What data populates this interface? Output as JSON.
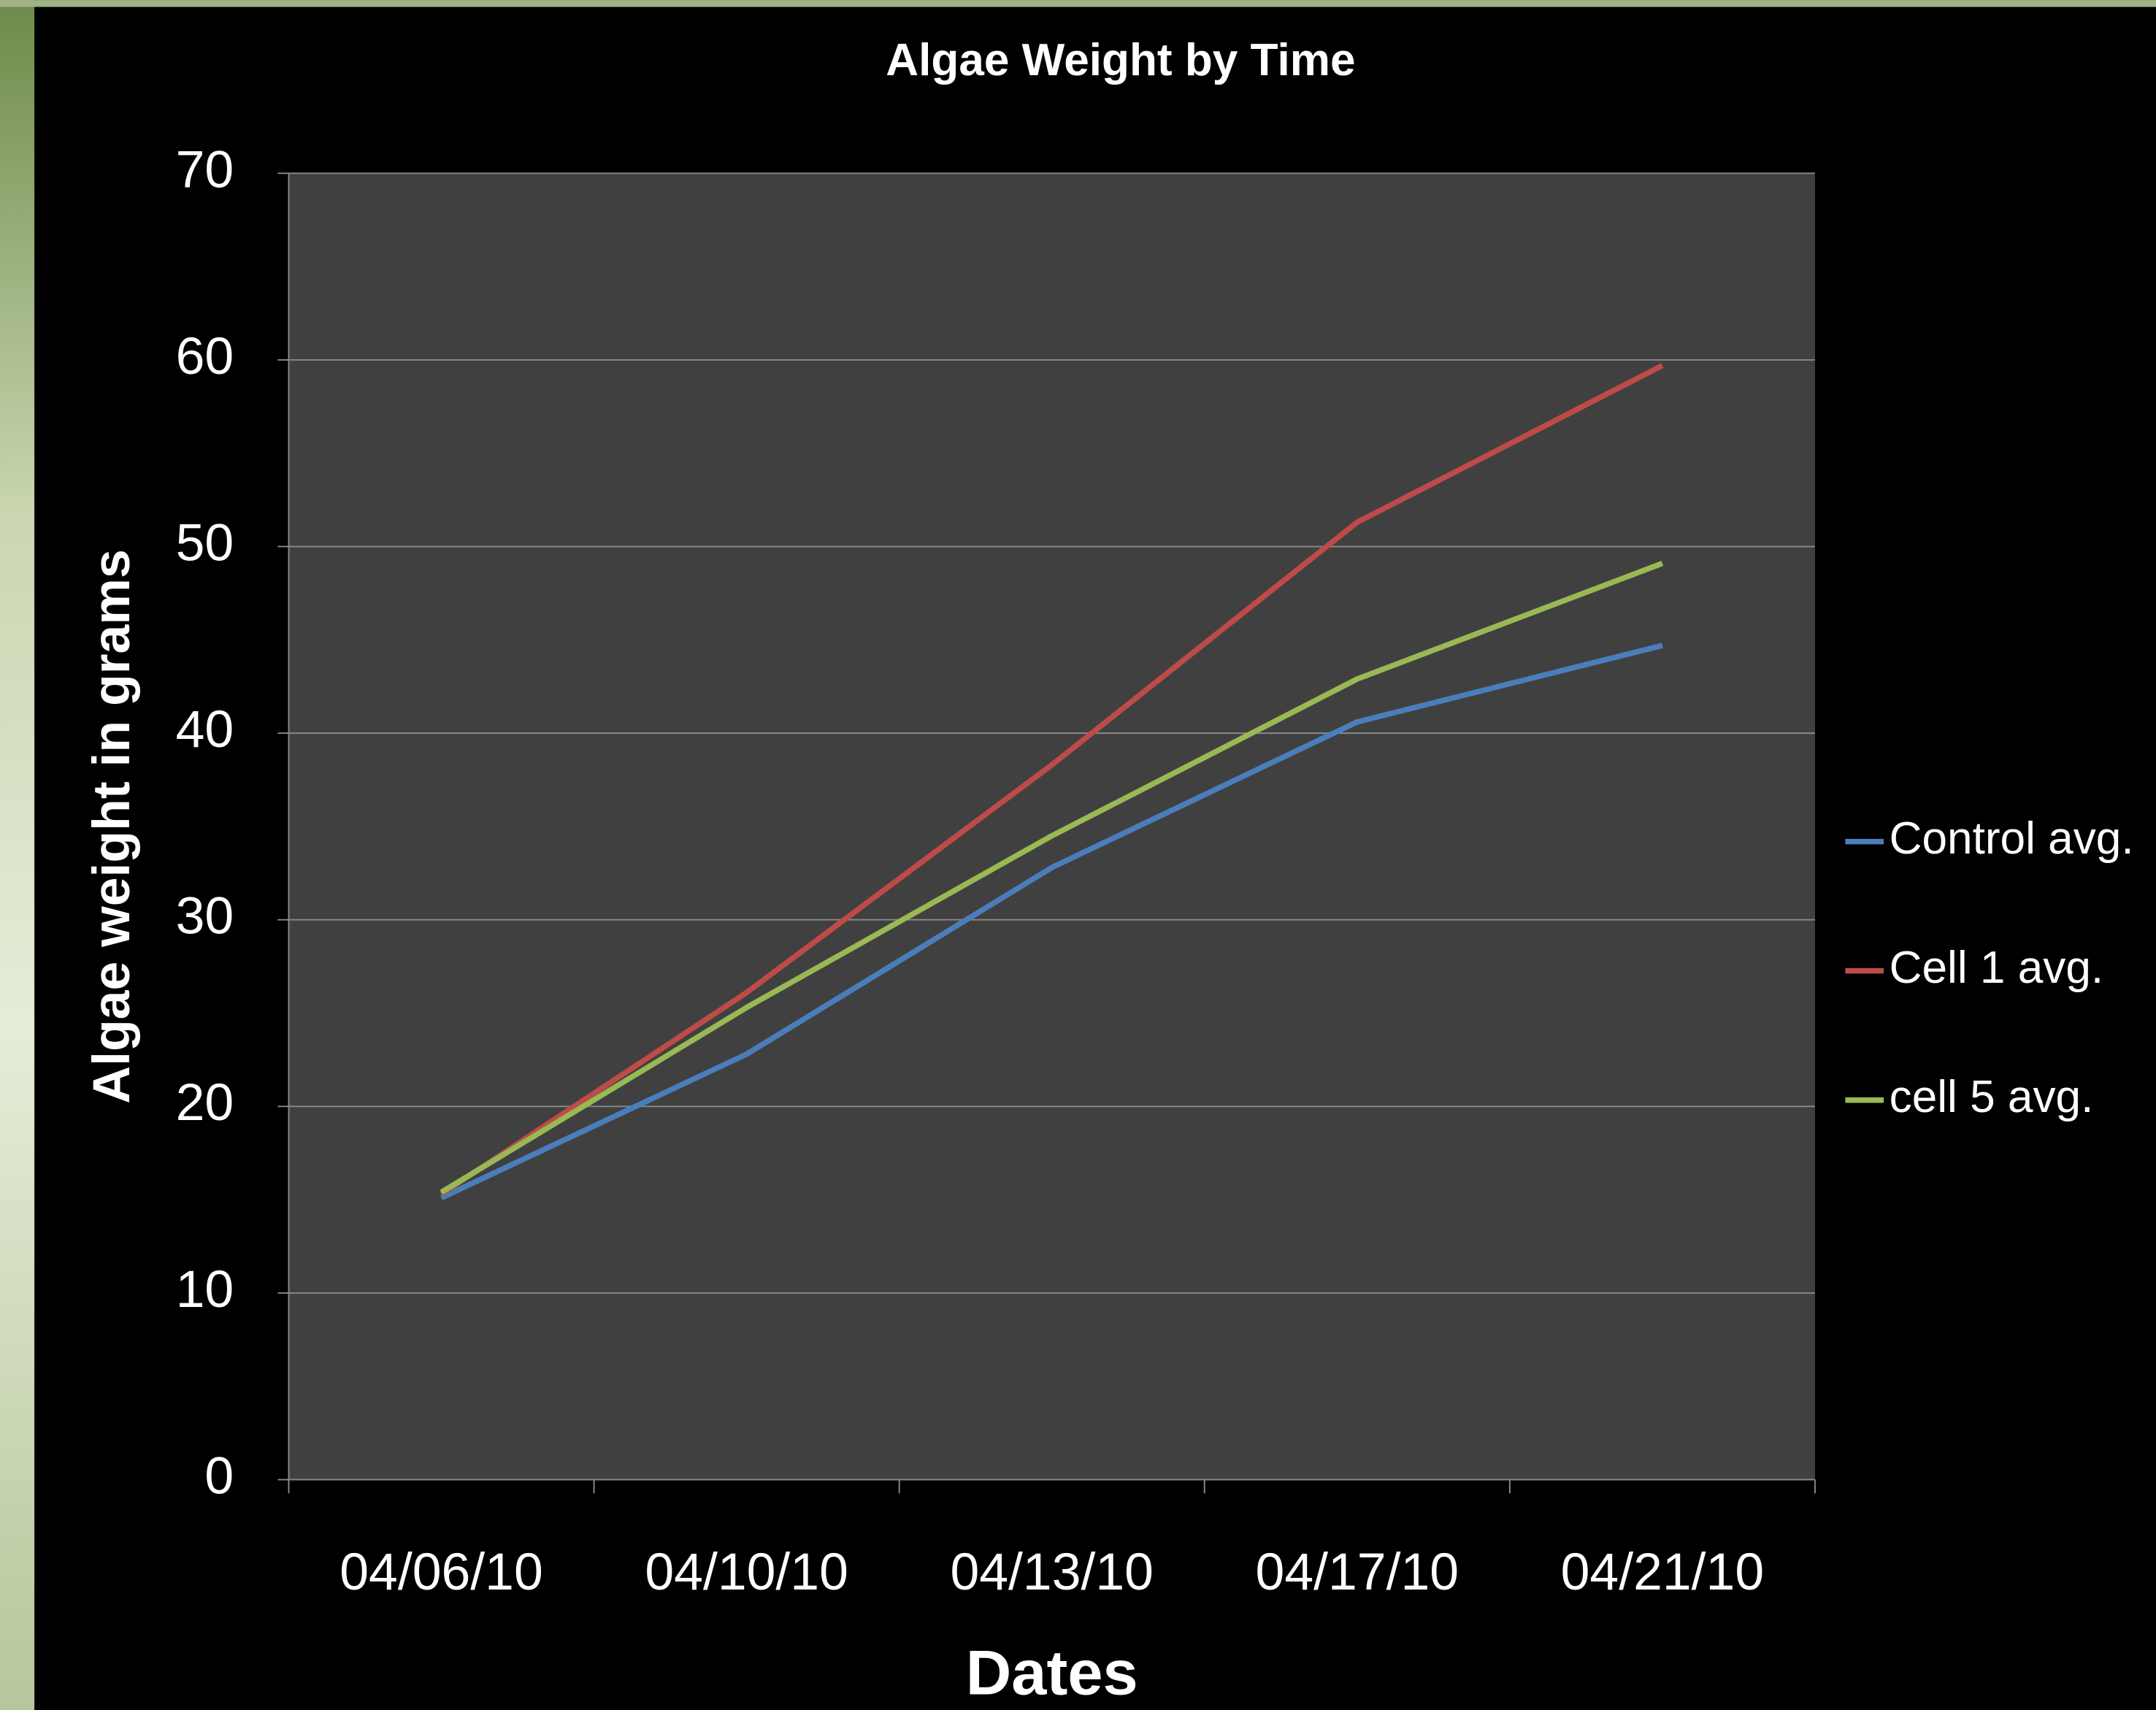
{
  "chart_data": {
    "type": "line",
    "title": "Algae Weight by Time",
    "x_label": "Dates",
    "y_label": "Algae weight in grams",
    "categories": [
      "04/06/10",
      "04/10/10",
      "04/13/10",
      "04/17/10",
      "04/21/10"
    ],
    "series": [
      {
        "name": "Control avg.",
        "color": "#4a7ebb",
        "values": [
          15.1,
          22.8,
          32.8,
          40.6,
          44.7
        ]
      },
      {
        "name": "Cell 1 avg.",
        "color": "#be4b48",
        "values": [
          15.3,
          26.1,
          38.3,
          51.3,
          59.7
        ]
      },
      {
        "name": "cell 5 avg.",
        "color": "#98b954",
        "values": [
          15.4,
          25.3,
          34.5,
          42.9,
          49.1
        ]
      }
    ],
    "ylim": [
      0,
      70
    ],
    "yticks": [
      0,
      10,
      20,
      30,
      40,
      50,
      60,
      70
    ],
    "grid": true,
    "legend": "right"
  }
}
